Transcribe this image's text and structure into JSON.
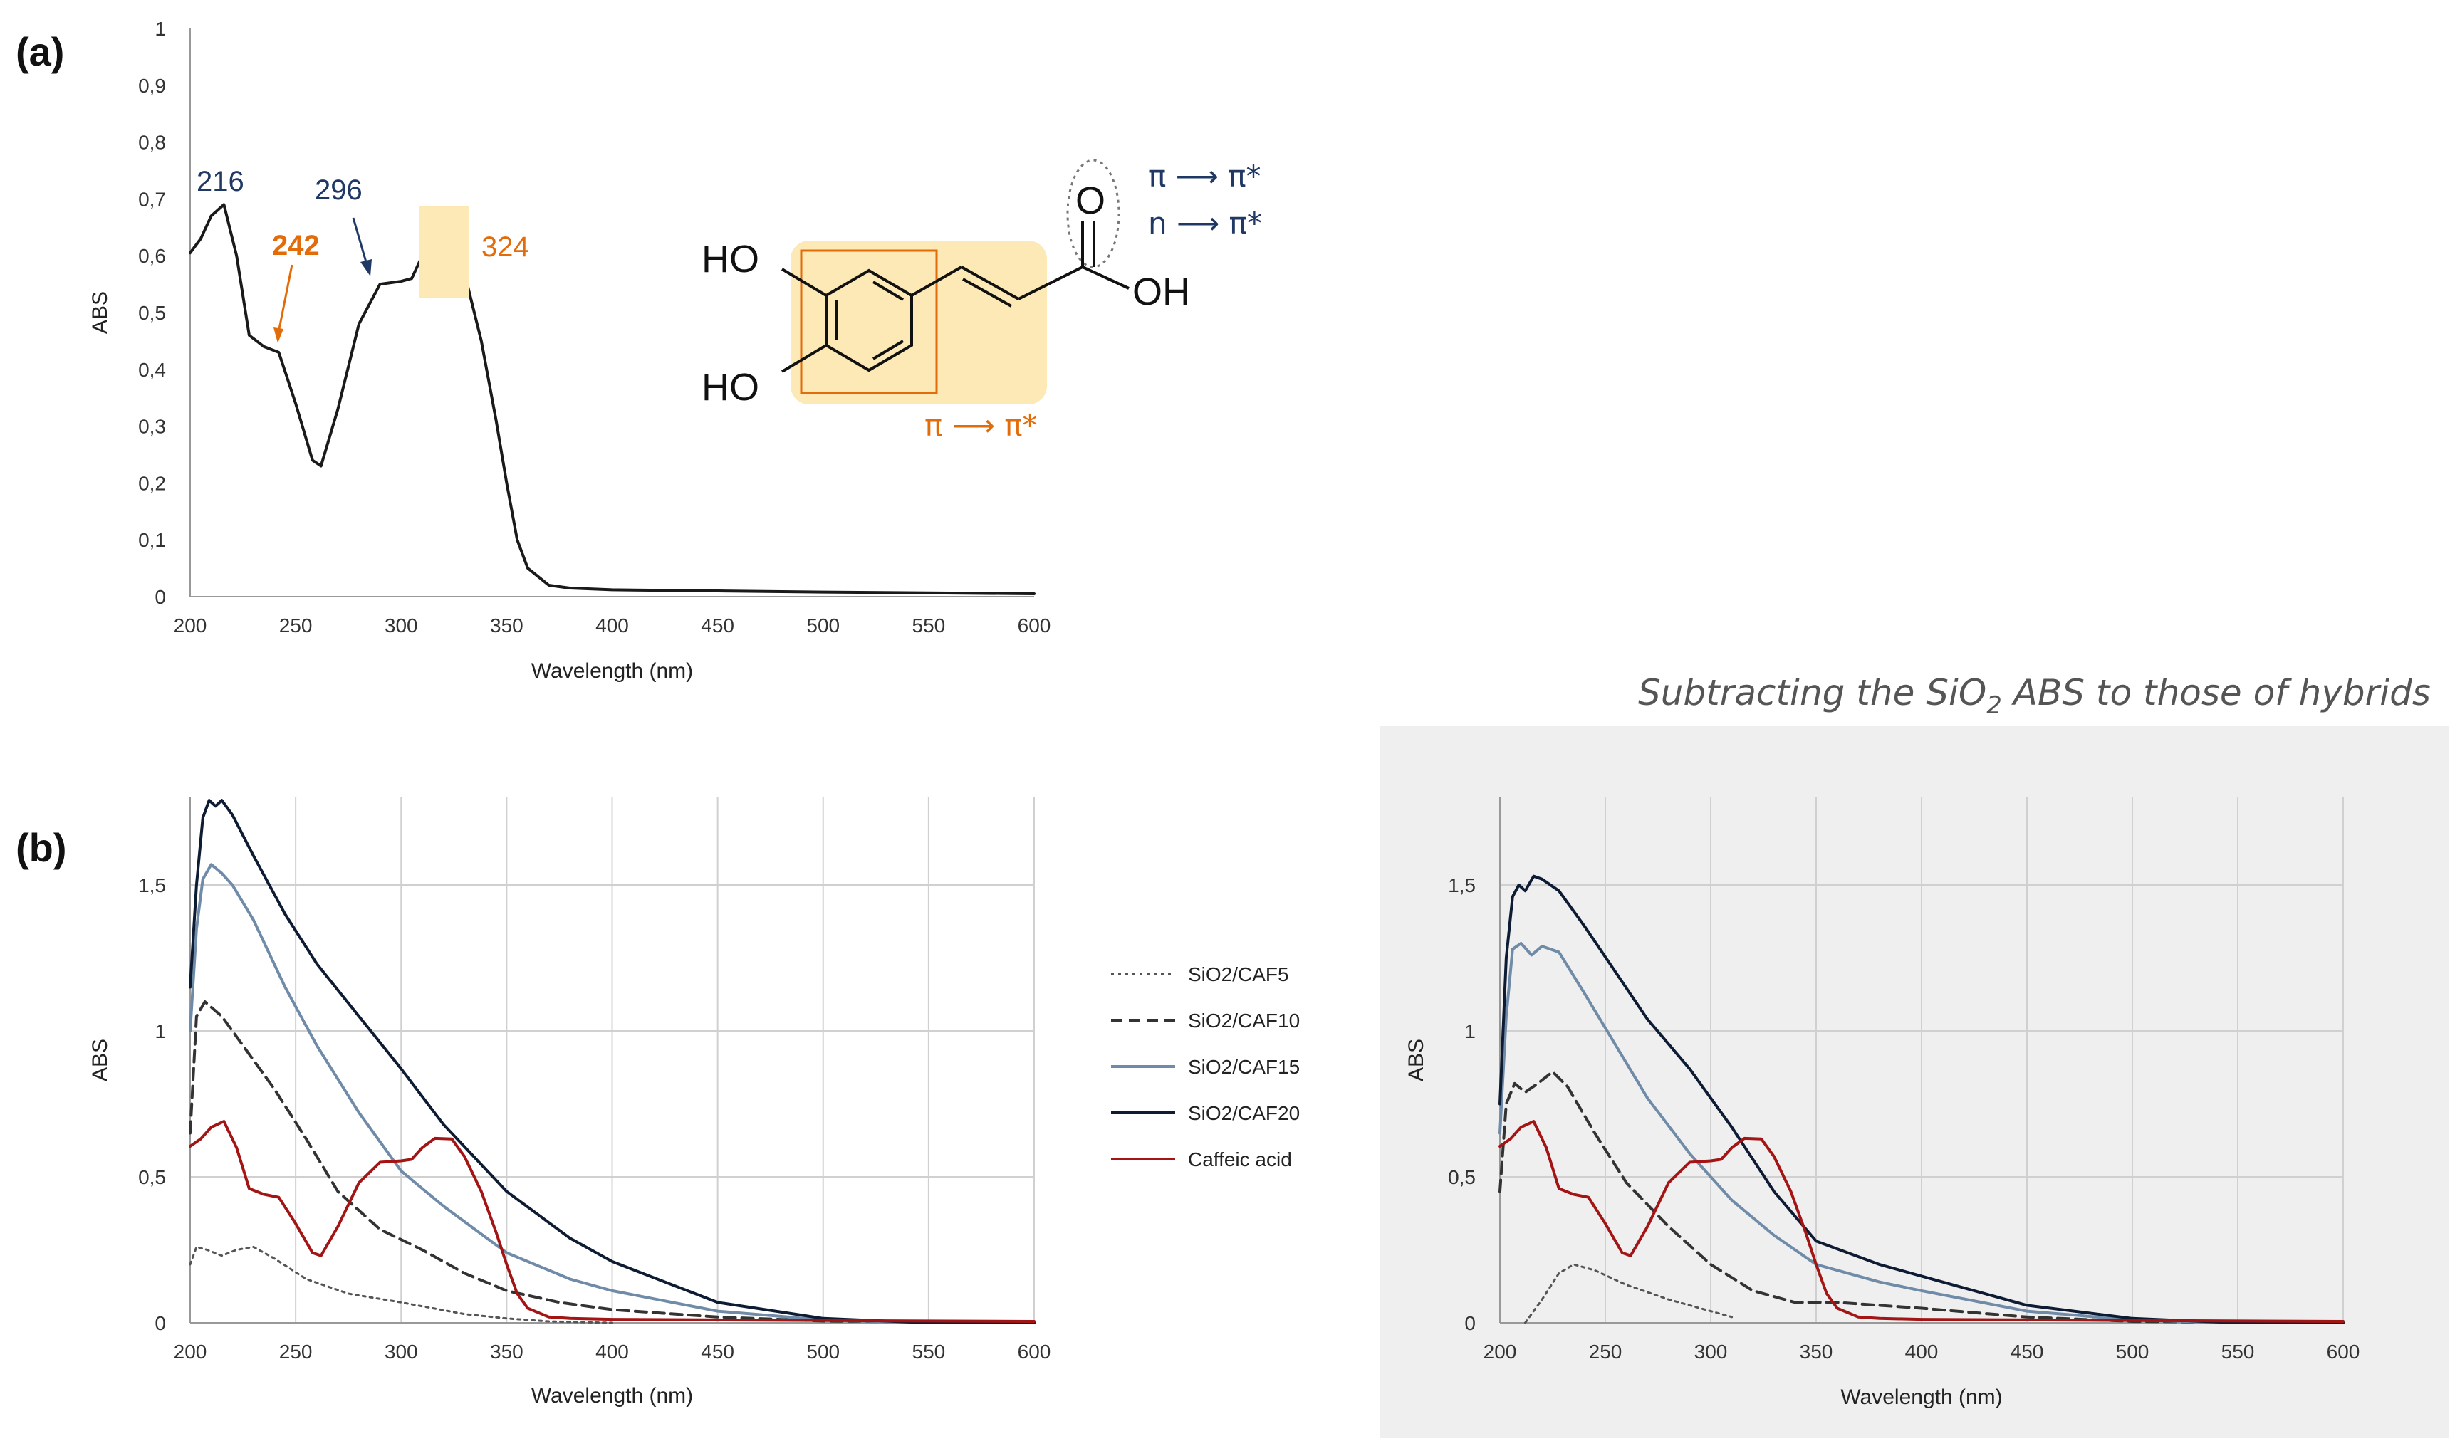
{
  "panel_a": {
    "label": "(a)",
    "peak_labels": [
      "216",
      "242",
      "296",
      "324"
    ],
    "structure": {
      "ho_top": "HO",
      "ho_bottom": "HO",
      "oh": "OH",
      "o": "O",
      "transition_1": "π ⟶ π*",
      "transition_2": "n ⟶ π*",
      "transition_3": "π ⟶ π*"
    }
  },
  "panel_b": {
    "label": "(b)"
  },
  "subtraction_note": {
    "prefix": "Subtracting the SiO",
    "subscript": "2",
    "suffix": " ABS to those of hybrids"
  },
  "colors": {
    "black": "#1a1a1a",
    "orange": "#e36c0a",
    "navy": "#1f3864",
    "dark_navy": "#0d1b33",
    "steel": "#6f8ba8",
    "dark_red": "#a31515",
    "grid": "#d0d0d0",
    "highlight": "#fde9b5",
    "panel_bg": "#efefef"
  },
  "chart_data": [
    {
      "id": "a",
      "type": "line",
      "title": "",
      "xlabel": "Wavelength (nm)",
      "ylabel": "ABS",
      "xlim": [
        200,
        600
      ],
      "ylim": [
        0,
        1
      ],
      "grid": false,
      "x_ticks": [
        "200",
        "250",
        "300",
        "350",
        "400",
        "450",
        "500",
        "550",
        "600"
      ],
      "y_ticks": [
        "0",
        "0,1",
        "0,2",
        "0,3",
        "0,4",
        "0,5",
        "0,6",
        "0,7",
        "0,8",
        "0,9",
        "1"
      ],
      "series": [
        {
          "color": "#1a1a1a",
          "dash": "solid",
          "x": [
            200,
            205,
            210,
            216,
            222,
            228,
            235,
            242,
            250,
            258,
            262,
            270,
            280,
            290,
            300,
            305,
            310,
            316,
            324,
            330,
            338,
            345,
            350,
            355,
            360,
            370,
            380,
            400,
            450,
            500,
            600
          ],
          "y": [
            0.605,
            0.63,
            0.67,
            0.69,
            0.6,
            0.46,
            0.44,
            0.43,
            0.34,
            0.24,
            0.23,
            0.33,
            0.48,
            0.55,
            0.555,
            0.56,
            0.6,
            0.632,
            0.63,
            0.57,
            0.45,
            0.31,
            0.2,
            0.1,
            0.05,
            0.02,
            0.015,
            0.012,
            0.01,
            0.008,
            0.005
          ]
        }
      ]
    },
    {
      "id": "b",
      "type": "line",
      "title": "",
      "xlabel": "Wavelength (nm)",
      "ylabel": "ABS",
      "xlim": [
        200,
        600
      ],
      "ylim": [
        0,
        1.8
      ],
      "grid": true,
      "legend_position": "right",
      "x_ticks": [
        "200",
        "250",
        "300",
        "350",
        "400",
        "450",
        "500",
        "550",
        "600"
      ],
      "y_ticks": [
        "0",
        "0,5",
        "1",
        "1,5"
      ],
      "series": [
        {
          "name": "SiO2/CAF5",
          "color": "#555555",
          "dash": "dotted",
          "x": [
            200,
            203,
            208,
            215,
            222,
            230,
            240,
            255,
            275,
            300,
            330,
            350,
            370,
            400
          ],
          "y": [
            0.2,
            0.26,
            0.25,
            0.23,
            0.25,
            0.26,
            0.22,
            0.15,
            0.1,
            0.07,
            0.03,
            0.015,
            0.005,
            0
          ]
        },
        {
          "name": "SiO2/CAF10",
          "color": "#333333",
          "dash": "dashed",
          "x": [
            200,
            203,
            207,
            215,
            225,
            240,
            255,
            270,
            290,
            310,
            330,
            350,
            375,
            400,
            450,
            500,
            600
          ],
          "y": [
            0.65,
            1.05,
            1.1,
            1.05,
            0.95,
            0.8,
            0.63,
            0.45,
            0.32,
            0.25,
            0.17,
            0.11,
            0.07,
            0.045,
            0.02,
            0.006,
            0
          ]
        },
        {
          "name": "SiO2/CAF15",
          "color": "#6f8ba8",
          "dash": "solid",
          "x": [
            200,
            203,
            206,
            210,
            215,
            220,
            230,
            245,
            260,
            280,
            300,
            320,
            350,
            380,
            400,
            450,
            500,
            550,
            600
          ],
          "y": [
            1.0,
            1.35,
            1.52,
            1.57,
            1.54,
            1.5,
            1.38,
            1.15,
            0.95,
            0.72,
            0.52,
            0.4,
            0.24,
            0.15,
            0.11,
            0.04,
            0.01,
            0,
            0
          ]
        },
        {
          "name": "SiO2/CAF20",
          "color": "#0d1b33",
          "dash": "solid",
          "x": [
            200,
            203,
            206,
            209,
            212,
            215,
            220,
            230,
            245,
            260,
            280,
            300,
            320,
            350,
            380,
            400,
            450,
            500,
            550,
            600
          ],
          "y": [
            1.15,
            1.5,
            1.73,
            1.79,
            1.77,
            1.79,
            1.74,
            1.6,
            1.4,
            1.23,
            1.05,
            0.87,
            0.68,
            0.45,
            0.29,
            0.21,
            0.07,
            0.015,
            0,
            0
          ]
        },
        {
          "name": "Caffeic acid",
          "color": "#a31515",
          "dash": "solid",
          "x": [
            200,
            205,
            210,
            216,
            222,
            228,
            235,
            242,
            250,
            258,
            262,
            270,
            280,
            290,
            300,
            305,
            310,
            316,
            324,
            330,
            338,
            345,
            350,
            355,
            360,
            370,
            380,
            400,
            450,
            500,
            600
          ],
          "y": [
            0.605,
            0.63,
            0.67,
            0.69,
            0.6,
            0.46,
            0.44,
            0.43,
            0.34,
            0.24,
            0.23,
            0.33,
            0.48,
            0.55,
            0.555,
            0.56,
            0.6,
            0.632,
            0.63,
            0.57,
            0.45,
            0.31,
            0.2,
            0.1,
            0.05,
            0.02,
            0.015,
            0.012,
            0.01,
            0.008,
            0.005
          ]
        }
      ]
    },
    {
      "id": "c",
      "type": "line",
      "title": "",
      "xlabel": "Wavelength (nm)",
      "ylabel": "ABS",
      "xlim": [
        200,
        600
      ],
      "ylim": [
        0,
        1.8
      ],
      "grid": true,
      "background": "#efefef",
      "x_ticks": [
        "200",
        "250",
        "300",
        "350",
        "400",
        "450",
        "500",
        "550",
        "600"
      ],
      "y_ticks": [
        "0",
        "0,5",
        "1",
        "1,5"
      ],
      "series": [
        {
          "name": "SiO2/CAF5",
          "color": "#555555",
          "dash": "dotted",
          "x": [
            212,
            220,
            228,
            235,
            245,
            260,
            280,
            300,
            310
          ],
          "y": [
            0,
            0.08,
            0.17,
            0.2,
            0.18,
            0.13,
            0.08,
            0.04,
            0.02
          ]
        },
        {
          "name": "SiO2/CAF10",
          "color": "#333333",
          "dash": "dashed",
          "x": [
            200,
            203,
            207,
            212,
            218,
            225,
            232,
            245,
            260,
            280,
            300,
            320,
            340,
            360,
            400,
            450,
            500,
            600
          ],
          "y": [
            0.45,
            0.75,
            0.82,
            0.79,
            0.82,
            0.86,
            0.81,
            0.65,
            0.48,
            0.33,
            0.2,
            0.11,
            0.07,
            0.07,
            0.05,
            0.02,
            0.005,
            0
          ]
        },
        {
          "name": "SiO2/CAF15",
          "color": "#6f8ba8",
          "dash": "solid",
          "x": [
            200,
            203,
            206,
            210,
            215,
            220,
            228,
            240,
            255,
            270,
            290,
            310,
            330,
            350,
            380,
            400,
            450,
            500,
            550,
            600
          ],
          "y": [
            0.65,
            1.05,
            1.28,
            1.3,
            1.26,
            1.29,
            1.27,
            1.13,
            0.95,
            0.77,
            0.58,
            0.42,
            0.3,
            0.2,
            0.14,
            0.11,
            0.04,
            0.01,
            0,
            0
          ]
        },
        {
          "name": "SiO2/CAF20",
          "color": "#0d1b33",
          "dash": "solid",
          "x": [
            200,
            203,
            206,
            209,
            212,
            216,
            220,
            228,
            240,
            255,
            270,
            290,
            310,
            330,
            350,
            380,
            400,
            450,
            500,
            550,
            600
          ],
          "y": [
            0.75,
            1.25,
            1.46,
            1.5,
            1.48,
            1.53,
            1.52,
            1.48,
            1.36,
            1.2,
            1.04,
            0.87,
            0.67,
            0.45,
            0.28,
            0.2,
            0.16,
            0.06,
            0.015,
            0,
            0
          ]
        },
        {
          "name": "Caffeic acid",
          "color": "#a31515",
          "dash": "solid",
          "x": [
            200,
            205,
            210,
            216,
            222,
            228,
            235,
            242,
            250,
            258,
            262,
            270,
            280,
            290,
            300,
            305,
            310,
            316,
            324,
            330,
            338,
            345,
            350,
            355,
            360,
            370,
            380,
            400,
            450,
            500,
            600
          ],
          "y": [
            0.605,
            0.63,
            0.67,
            0.69,
            0.6,
            0.46,
            0.44,
            0.43,
            0.34,
            0.24,
            0.23,
            0.33,
            0.48,
            0.55,
            0.555,
            0.56,
            0.6,
            0.632,
            0.63,
            0.57,
            0.45,
            0.31,
            0.2,
            0.1,
            0.05,
            0.02,
            0.015,
            0.012,
            0.01,
            0.008,
            0.005
          ]
        }
      ]
    }
  ]
}
